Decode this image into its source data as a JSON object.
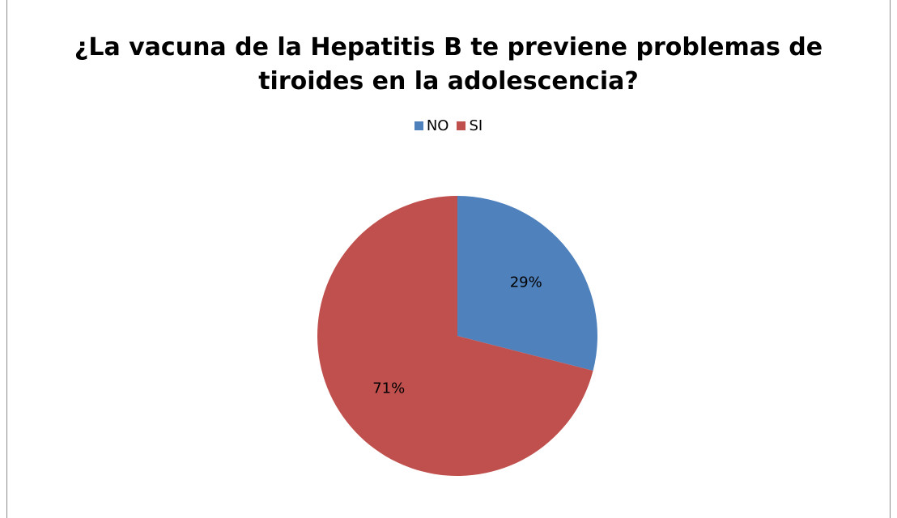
{
  "chart_data": {
    "type": "pie",
    "title": "¿La vacuna  de la Hepatitis B te previene problemas de\ntiroides en la adolescencia?",
    "categories": [
      "NO",
      "SI"
    ],
    "values": [
      29,
      71
    ],
    "data_labels": [
      "29%",
      "71%"
    ],
    "colors": [
      "#4f81bd",
      "#c0504d"
    ],
    "legend_position": "top"
  }
}
